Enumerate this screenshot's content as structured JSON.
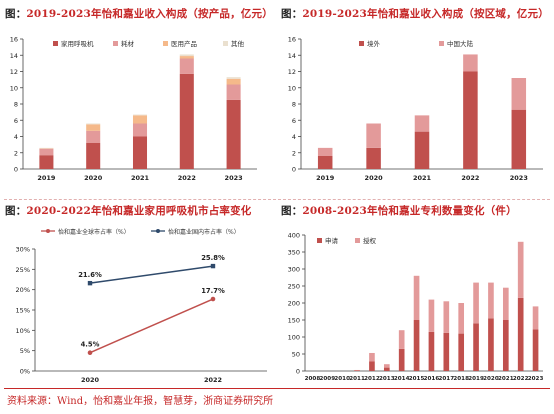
{
  "panels": [
    {
      "prefix": "图：",
      "title": "2019-2023年怡和嘉业收入构成（按产品，亿元）"
    },
    {
      "prefix": "图：",
      "title": "2019-2023年怡和嘉业收入构成（按区域，亿元）"
    },
    {
      "prefix": "图：",
      "title": "2020-2022年怡和嘉业家用呼吸机市占率变化"
    },
    {
      "prefix": "图：",
      "title": "2008-2023年怡和嘉业专利数量变化（件）"
    }
  ],
  "source": "资料来源：Wind，怡和嘉业年报，智慧芽，浙商证券研究所",
  "colors": {
    "dark_red": "#c0504d",
    "pink": "#e39a9a",
    "orange": "#f5b98a",
    "beige": "#eae0cf",
    "navy": "#2f4a6b",
    "title_red": "#c62828"
  },
  "chart_data": [
    {
      "type": "bar",
      "stacked": true,
      "categories": [
        "2019",
        "2020",
        "2021",
        "2022",
        "2023"
      ],
      "ylim": [
        0,
        16
      ],
      "yticks": [
        0,
        2,
        4,
        6,
        8,
        10,
        12,
        14,
        16
      ],
      "legend_position": "top",
      "series": [
        {
          "name": "家用呼吸机",
          "color": "#c0504d",
          "values": [
            1.7,
            3.2,
            4.0,
            11.7,
            8.5
          ]
        },
        {
          "name": "耗材",
          "color": "#e39a9a",
          "values": [
            0.8,
            1.5,
            1.6,
            1.9,
            1.9
          ]
        },
        {
          "name": "医用产品",
          "color": "#f5b98a",
          "values": [
            0.05,
            0.8,
            1.0,
            0.3,
            0.7
          ]
        },
        {
          "name": "其他",
          "color": "#eae0cf",
          "values": [
            0.05,
            0.1,
            0.1,
            0.2,
            0.2
          ]
        }
      ]
    },
    {
      "type": "bar",
      "stacked": true,
      "categories": [
        "2019",
        "2020",
        "2021",
        "2022",
        "2023"
      ],
      "ylim": [
        0,
        16
      ],
      "yticks": [
        0,
        2,
        4,
        6,
        8,
        10,
        12,
        14,
        16
      ],
      "legend_position": "top",
      "series": [
        {
          "name": "境外",
          "color": "#c0504d",
          "values": [
            1.6,
            2.6,
            4.6,
            12.0,
            7.3
          ]
        },
        {
          "name": "中国大陆",
          "color": "#e39a9a",
          "values": [
            1.0,
            3.0,
            2.0,
            2.1,
            3.9
          ]
        }
      ]
    },
    {
      "type": "line",
      "categories": [
        "2020",
        "2022"
      ],
      "ylim": [
        0,
        30
      ],
      "yticks": [
        0,
        5,
        10,
        15,
        20,
        25,
        30
      ],
      "ytick_suffix": "%",
      "legend_position": "top",
      "series": [
        {
          "name": "怡和嘉业全球市占率（%）",
          "color": "#c0504d",
          "values": [
            4.5,
            17.7
          ],
          "labels": [
            "4.5%",
            "17.7%"
          ]
        },
        {
          "name": "怡和嘉业国内市占率（%）",
          "color": "#2f4a6b",
          "values": [
            21.6,
            25.8
          ],
          "labels": [
            "21.6%",
            "25.8%"
          ]
        }
      ]
    },
    {
      "type": "bar",
      "stacked": true,
      "categories": [
        "2008",
        "2009",
        "2010",
        "2011",
        "2012",
        "2013",
        "2014",
        "2015",
        "2016",
        "2017",
        "2018",
        "2019",
        "2020",
        "2021",
        "2022",
        "2023"
      ],
      "ylim": [
        0,
        400
      ],
      "yticks": [
        0,
        50,
        100,
        150,
        200,
        250,
        300,
        350,
        400
      ],
      "legend_position": "top-left",
      "series": [
        {
          "name": "申请",
          "color": "#c0504d",
          "values": [
            0,
            0,
            0,
            2,
            28,
            10,
            65,
            150,
            115,
            112,
            110,
            140,
            155,
            150,
            215,
            122
          ]
        },
        {
          "name": "授权",
          "color": "#e39a9a",
          "values": [
            0,
            0,
            0,
            1,
            25,
            10,
            55,
            130,
            95,
            93,
            90,
            120,
            105,
            95,
            165,
            68
          ]
        }
      ]
    }
  ]
}
